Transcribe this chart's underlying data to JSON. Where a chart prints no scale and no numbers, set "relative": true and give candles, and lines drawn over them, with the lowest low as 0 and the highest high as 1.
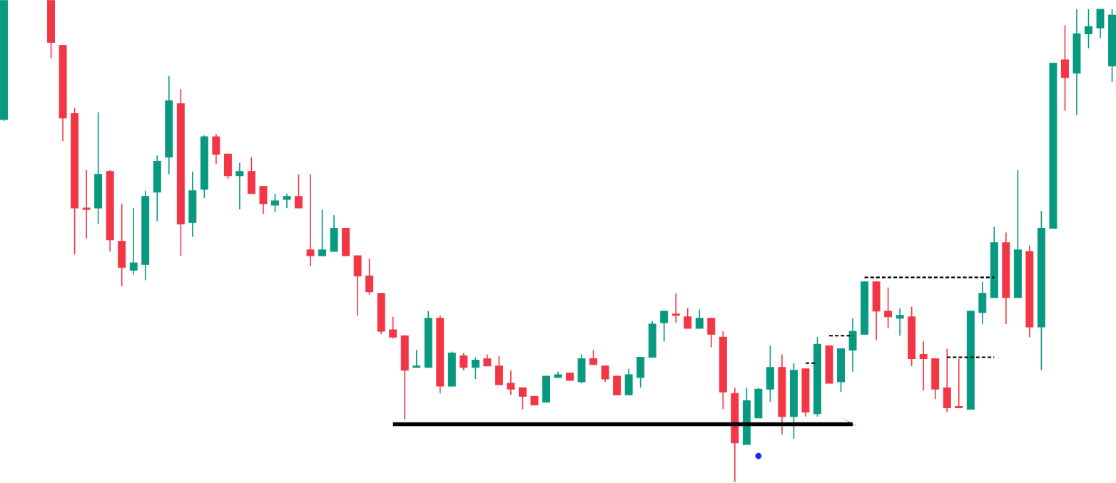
{
  "chart_data": {
    "type": "candlestick",
    "relative": true,
    "categories": [
      null,
      null,
      null,
      null,
      null,
      null,
      null,
      null,
      null,
      null,
      null,
      null,
      null,
      null,
      null,
      null,
      null,
      null,
      null,
      null,
      null,
      null,
      null,
      null,
      null,
      null,
      null,
      null,
      null,
      null,
      null,
      null,
      null,
      null,
      null,
      null,
      null,
      null,
      null,
      null,
      null,
      null,
      null,
      null,
      null,
      null,
      null,
      null,
      null,
      null,
      null,
      null,
      null,
      null,
      null,
      null,
      null,
      null,
      null,
      null,
      null,
      null,
      null,
      null,
      null,
      null,
      null,
      null,
      null,
      null,
      null,
      null,
      null,
      null,
      null,
      null,
      null,
      null,
      null,
      null,
      null,
      null,
      null,
      null,
      null,
      null,
      null,
      null,
      null,
      null,
      null,
      null,
      null,
      null,
      null
    ],
    "ohlc": [
      [
        0.753,
        1,
        0.75,
        1
      ],
      null,
      null,
      null,
      [
        1,
        1,
        0.88,
        0.913
      ],
      [
        0.907,
        0.907,
        0.708,
        0.756
      ],
      [
        0.765,
        0.777,
        0.473,
        0.569
      ],
      [
        0.569,
        0.648,
        0.506,
        0.566
      ],
      [
        0.569,
        0.768,
        0.536,
        0.639
      ],
      [
        0.645,
        0.648,
        0.479,
        0.503
      ],
      [
        0.5,
        0.578,
        0.407,
        0.446
      ],
      [
        0.44,
        0.569,
        0.431,
        0.455
      ],
      [
        0.452,
        0.605,
        0.419,
        0.593
      ],
      [
        0.602,
        0.678,
        0.542,
        0.666
      ],
      [
        0.675,
        0.843,
        0.639,
        0.792
      ],
      [
        0.786,
        0.816,
        0.47,
        0.536
      ],
      [
        0.539,
        0.645,
        0.509,
        0.605
      ],
      [
        0.608,
        0.72,
        0.59,
        0.717
      ],
      [
        0.717,
        0.723,
        0.66,
        0.681
      ],
      [
        0.681,
        0.681,
        0.63,
        0.636
      ],
      [
        0.636,
        0.663,
        0.566,
        0.645
      ],
      [
        0.645,
        0.675,
        0.599,
        0.599
      ],
      [
        0.614,
        0.614,
        0.557,
        0.578
      ],
      [
        0.575,
        0.599,
        0.56,
        0.584
      ],
      [
        0.587,
        0.599,
        0.569,
        0.593
      ],
      [
        0.593,
        0.639,
        0.569,
        0.569
      ],
      [
        0.482,
        0.639,
        0.449,
        0.47
      ],
      [
        0.47,
        0.566,
        0.47,
        0.482
      ],
      [
        0.479,
        0.554,
        0.479,
        0.527
      ],
      [
        0.527,
        0.527,
        0.47,
        0.47
      ],
      [
        0.47,
        0.47,
        0.346,
        0.428
      ],
      [
        0.428,
        0.464,
        0.389,
        0.395
      ],
      [
        0.392,
        0.392,
        0.307,
        0.313
      ],
      [
        0.316,
        0.343,
        0.298,
        0.301
      ],
      [
        0.304,
        0.304,
        0.13,
        0.232
      ],
      [
        0.238,
        0.274,
        0.238,
        0.241
      ],
      [
        0.238,
        0.355,
        0.238,
        0.34
      ],
      [
        0.34,
        0.346,
        0.184,
        0.199
      ],
      [
        0.199,
        0.271,
        0.199,
        0.268
      ],
      [
        0.262,
        0.268,
        0.232,
        0.238
      ],
      [
        0.238,
        0.259,
        0.214,
        0.253
      ],
      [
        0.256,
        0.265,
        0.241,
        0.241
      ],
      [
        0.241,
        0.262,
        0.202,
        0.202
      ],
      [
        0.205,
        0.232,
        0.181,
        0.193
      ],
      [
        0.196,
        0.196,
        0.151,
        0.178
      ],
      [
        0.178,
        0.178,
        0.16,
        0.16
      ],
      [
        0.166,
        0.22,
        0.166,
        0.22
      ],
      [
        0.217,
        0.229,
        0.217,
        0.223
      ],
      [
        0.226,
        0.226,
        0.211,
        0.211
      ],
      [
        0.208,
        0.265,
        0.205,
        0.256
      ],
      [
        0.256,
        0.274,
        0.244,
        0.244
      ],
      [
        0.241,
        0.241,
        0.208,
        0.214
      ],
      [
        0.22,
        0.22,
        0.181,
        0.181
      ],
      [
        0.181,
        0.235,
        0.181,
        0.223
      ],
      [
        0.217,
        0.259,
        0.196,
        0.259
      ],
      [
        0.259,
        0.334,
        0.259,
        0.328
      ],
      [
        0.331,
        0.355,
        0.292,
        0.355
      ],
      [
        0.349,
        0.392,
        0.331,
        0.346
      ],
      [
        0.343,
        0.361,
        0.319,
        0.319
      ],
      [
        0.319,
        0.358,
        0.319,
        0.34
      ],
      [
        0.34,
        0.34,
        0.28,
        0.307
      ],
      [
        0.301,
        0.313,
        0.151,
        0.187
      ],
      [
        0.184,
        0.196,
        0,
        0.081
      ],
      [
        0.078,
        0.196,
        0.078,
        0.169
      ],
      [
        0.133,
        0.196,
        0.133,
        0.193
      ],
      [
        0.193,
        0.283,
        0.166,
        0.238
      ],
      [
        0.238,
        0.265,
        0.099,
        0.136
      ],
      [
        0.136,
        0.247,
        0.09,
        0.232
      ],
      [
        0.235,
        0.235,
        0.136,
        0.145
      ],
      [
        0.142,
        0.301,
        0.136,
        0.286
      ],
      [
        0.283,
        0.283,
        0.205,
        0.205
      ],
      [
        0.208,
        0.277,
        0.187,
        0.277
      ],
      [
        0.274,
        0.34,
        0.229,
        0.313
      ],
      [
        0.307,
        0.416,
        0.307,
        0.416
      ],
      [
        0.416,
        0.416,
        0.295,
        0.355
      ],
      [
        0.355,
        0.404,
        0.319,
        0.343
      ],
      [
        0.34,
        0.361,
        0.304,
        0.346
      ],
      [
        0.343,
        0.364,
        0.241,
        0.256
      ],
      [
        0.265,
        0.292,
        0.19,
        0.256
      ],
      [
        0.256,
        0.256,
        0.172,
        0.193
      ],
      [
        0.196,
        0.277,
        0.145,
        0.154
      ],
      [
        0.157,
        0.256,
        0.154,
        0.154
      ],
      [
        0.151,
        0.355,
        0.151,
        0.355
      ],
      [
        0.352,
        0.416,
        0.328,
        0.392
      ],
      [
        0.383,
        0.53,
        0.383,
        0.497
      ],
      [
        0.497,
        0.518,
        0.328,
        0.383
      ],
      [
        0.383,
        0.648,
        0.383,
        0.482
      ],
      [
        0.479,
        0.491,
        0.301,
        0.322
      ],
      [
        0.322,
        0.563,
        0.232,
        0.527
      ],
      [
        0.527,
        0.87,
        0.527,
        0.87
      ],
      [
        0.877,
        0.949,
        0.771,
        0.84
      ],
      [
        0.849,
        0.982,
        0.762,
        0.931
      ],
      [
        0.931,
        0.982,
        0.901,
        0.946
      ],
      [
        0.943,
        0.982,
        0.922,
        0.982
      ],
      [
        0.864,
        0.982,
        0.831,
        0.97
      ]
    ],
    "colors": [
      "#089981",
      null,
      null,
      null,
      "#f23645",
      "#f23645",
      "#f23645",
      "#f23645",
      "#089981",
      "#f23645",
      "#f23645",
      "#089981",
      "#089981",
      "#089981",
      "#089981",
      "#f23645",
      "#089981",
      "#089981",
      "#f23645",
      "#f23645",
      "#089981",
      "#f23645",
      "#f23645",
      "#089981",
      "#089981",
      "#f23645",
      "#f23645",
      "#089981",
      "#089981",
      "#f23645",
      "#f23645",
      "#f23645",
      "#f23645",
      "#f23645",
      "#f23645",
      "#089981",
      "#089981",
      "#f23645",
      "#089981",
      "#f23645",
      "#089981",
      "#f23645",
      "#f23645",
      "#f23645",
      "#f23645",
      "#f23645",
      "#089981",
      "#089981",
      "#f23645",
      "#089981",
      "#f23645",
      "#f23645",
      "#f23645",
      "#089981",
      "#089981",
      "#089981",
      "#089981",
      "#f23645",
      "#f23645",
      "#089981",
      "#f23645",
      "#f23645",
      "#f23645",
      "#089981",
      "#089981",
      "#089981",
      "#f23645",
      "#089981",
      "#f23645",
      "#089981",
      "#f23645",
      "#089981",
      "#089981",
      "#089981",
      "#f23645",
      "#f23645",
      "#089981",
      "#f23645",
      "#f23645",
      "#f23645",
      "#f23645",
      "#f23645",
      "#089981",
      "#089981",
      "#089981",
      "#f23645",
      "#089981",
      "#f23645",
      "#089981",
      "#089981",
      "#f23645",
      "#089981",
      "#089981",
      "#089981",
      "#089981"
    ],
    "series": [
      {
        "type": "line",
        "color": "#000000",
        "line_style": "solid",
        "values": [
          null,
          null,
          null,
          null,
          null,
          null,
          null,
          null,
          null,
          null,
          null,
          null,
          null,
          null,
          null,
          null,
          null,
          null,
          null,
          null,
          null,
          null,
          null,
          null,
          null,
          null,
          null,
          null,
          null,
          null,
          null,
          null,
          null,
          0.12,
          null,
          null,
          null,
          null,
          null,
          null,
          null,
          null,
          null,
          null,
          null,
          null,
          null,
          null,
          null,
          null,
          null,
          null,
          null,
          null,
          null,
          null,
          null,
          null,
          null,
          null,
          null,
          null,
          null,
          null,
          null,
          null,
          null,
          null,
          null,
          null,
          null,
          null,
          0.12,
          null,
          null,
          null,
          null,
          null,
          null,
          null,
          null,
          null,
          null,
          null,
          null,
          null,
          null,
          null,
          null,
          null,
          null,
          null,
          null,
          null,
          null
        ]
      },
      {
        "type": "line",
        "color": "#000000",
        "line_style": "dashed",
        "values": [
          null,
          null,
          null,
          null,
          null,
          null,
          null,
          null,
          null,
          null,
          null,
          null,
          null,
          null,
          null,
          null,
          null,
          null,
          null,
          null,
          null,
          null,
          null,
          null,
          null,
          null,
          null,
          null,
          null,
          null,
          null,
          null,
          null,
          null,
          null,
          null,
          null,
          null,
          null,
          null,
          null,
          null,
          null,
          null,
          null,
          null,
          null,
          null,
          null,
          null,
          null,
          null,
          null,
          null,
          null,
          null,
          null,
          null,
          null,
          null,
          null,
          null,
          null,
          null,
          null,
          null,
          null,
          null,
          0.247,
          0.247,
          null,
          null,
          null,
          null,
          null,
          null,
          null,
          null,
          null,
          null,
          null,
          null,
          null,
          null,
          null,
          null,
          null,
          null,
          null,
          null,
          null,
          null,
          null,
          null,
          null
        ]
      },
      {
        "type": "line",
        "color": "#000000",
        "line_style": "dashed",
        "values": [
          null,
          null,
          null,
          null,
          null,
          null,
          null,
          null,
          null,
          null,
          null,
          null,
          null,
          null,
          null,
          null,
          null,
          null,
          null,
          null,
          null,
          null,
          null,
          null,
          null,
          null,
          null,
          null,
          null,
          null,
          null,
          null,
          null,
          null,
          null,
          null,
          null,
          null,
          null,
          null,
          null,
          null,
          null,
          null,
          null,
          null,
          null,
          null,
          null,
          null,
          null,
          null,
          null,
          null,
          null,
          null,
          null,
          null,
          null,
          null,
          null,
          null,
          null,
          null,
          null,
          null,
          null,
          null,
          null,
          null,
          0.304,
          null,
          0.304,
          null,
          null,
          null,
          null,
          null,
          null,
          null,
          null,
          null,
          null,
          null,
          null,
          null,
          null,
          null,
          null,
          null,
          null,
          null,
          null,
          null,
          null
        ]
      },
      {
        "type": "line",
        "color": "#000000",
        "line_style": "dashed",
        "values": [
          null,
          null,
          null,
          null,
          null,
          null,
          null,
          null,
          null,
          null,
          null,
          null,
          null,
          null,
          null,
          null,
          null,
          null,
          null,
          null,
          null,
          null,
          null,
          null,
          null,
          null,
          null,
          null,
          null,
          null,
          null,
          null,
          null,
          null,
          null,
          null,
          null,
          null,
          null,
          null,
          null,
          null,
          null,
          null,
          null,
          null,
          null,
          null,
          null,
          null,
          null,
          null,
          null,
          null,
          null,
          null,
          null,
          null,
          null,
          null,
          null,
          null,
          null,
          null,
          null,
          null,
          null,
          null,
          null,
          null,
          null,
          null,
          null,
          0.425,
          null,
          null,
          null,
          null,
          null,
          null,
          null,
          null,
          null,
          null,
          0.425,
          null,
          null,
          null,
          null,
          null,
          null,
          null,
          null,
          null,
          null
        ]
      },
      {
        "type": "line",
        "color": "#000000",
        "line_style": "dashed",
        "values": [
          null,
          null,
          null,
          null,
          null,
          null,
          null,
          null,
          null,
          null,
          null,
          null,
          null,
          null,
          null,
          null,
          null,
          null,
          null,
          null,
          null,
          null,
          null,
          null,
          null,
          null,
          null,
          null,
          null,
          null,
          null,
          null,
          null,
          null,
          null,
          null,
          null,
          null,
          null,
          null,
          null,
          null,
          null,
          null,
          null,
          null,
          null,
          null,
          null,
          null,
          null,
          null,
          null,
          null,
          null,
          null,
          null,
          null,
          null,
          null,
          null,
          null,
          null,
          null,
          null,
          null,
          null,
          null,
          null,
          null,
          null,
          null,
          null,
          null,
          null,
          null,
          null,
          null,
          null,
          null,
          0.259,
          null,
          null,
          null,
          0.259,
          null,
          null,
          null,
          null,
          null,
          null,
          null,
          null,
          null,
          null
        ]
      },
      {
        "type": "scatter",
        "color": "#1f1fff",
        "marker": "circle",
        "values": [
          null,
          null,
          null,
          null,
          null,
          null,
          null,
          null,
          null,
          null,
          null,
          null,
          null,
          null,
          null,
          null,
          null,
          null,
          null,
          null,
          null,
          null,
          null,
          null,
          null,
          null,
          null,
          null,
          null,
          null,
          null,
          null,
          null,
          null,
          null,
          null,
          null,
          null,
          null,
          null,
          null,
          null,
          null,
          null,
          null,
          null,
          null,
          null,
          null,
          null,
          null,
          null,
          null,
          null,
          null,
          null,
          null,
          null,
          null,
          null,
          null,
          null,
          null,
          null,
          0.054,
          null,
          null,
          null,
          null,
          null,
          null,
          null,
          null,
          null,
          null,
          null,
          null,
          null,
          null,
          null,
          null,
          null,
          null,
          null,
          null,
          null,
          null,
          null,
          null,
          null,
          null,
          null,
          null,
          null,
          null
        ]
      }
    ]
  }
}
